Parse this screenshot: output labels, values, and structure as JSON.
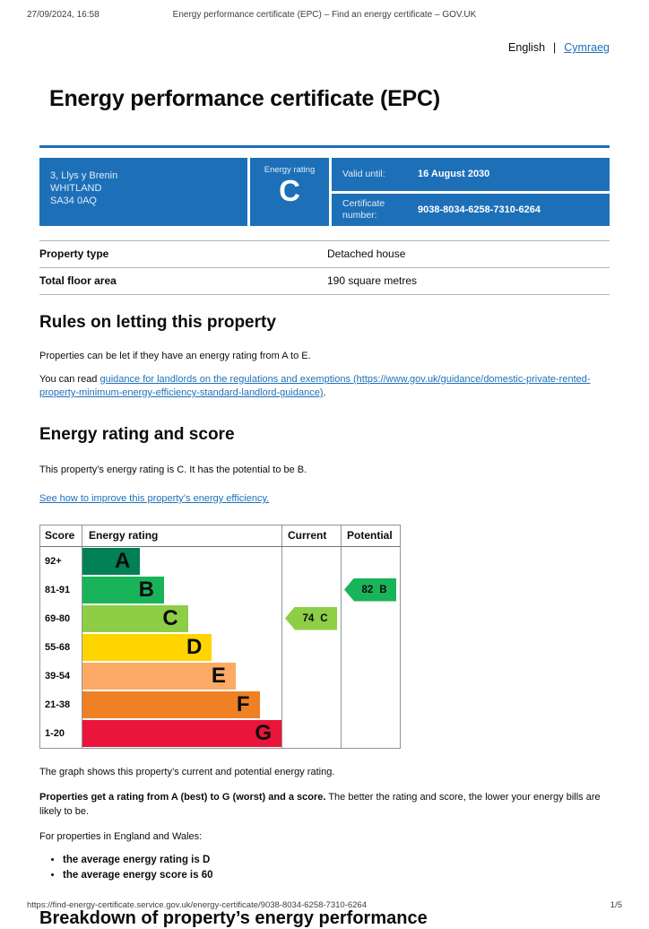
{
  "print_header": {
    "datetime": "27/09/2024, 16:58",
    "title": "Energy performance certificate (EPC) – Find an energy certificate – GOV.UK"
  },
  "language_switcher": {
    "current": "English",
    "divider": "|",
    "link": "Cymraeg"
  },
  "page": {
    "title": "Energy performance certificate (EPC)"
  },
  "summary_banner": {
    "address_lines": [
      "3, Llys y Brenin",
      "WHITLAND",
      "SA34 0AQ"
    ],
    "rating_label": "Energy rating",
    "rating_value": "C",
    "valid_until_label": "Valid until:",
    "valid_until_value": "16 August 2030",
    "certificate_number_label": "Certificate number:",
    "certificate_number_value": "9038-8034-6258-7310-6264"
  },
  "property_summary": {
    "rows": [
      {
        "label": "Property type",
        "value": "Detached house"
      },
      {
        "label": "Total floor area",
        "value": "190 square metres"
      }
    ]
  },
  "letting_rules": {
    "heading": "Rules on letting this property",
    "intro": "Properties can be let if they have an energy rating from A to E.",
    "guidance_prefix": "You can read ",
    "guidance_link": "guidance for landlords on the regulations and exemptions (https://www.gov.uk/guidance/domestic-private-rented-property-minimum-energy-efficiency-standard-landlord-guidance)",
    "guidance_suffix": "."
  },
  "rating_score": {
    "heading": "Energy rating and score",
    "summary": "This property’s energy rating is C. It has the potential to be B.",
    "improve_link": "See how to improve this property’s energy efficiency."
  },
  "chart_data": {
    "type": "epc-rating-bands",
    "headers": {
      "score": "Score",
      "rating": "Energy rating",
      "current": "Current",
      "potential": "Potential"
    },
    "bands": [
      {
        "score_range": "92+",
        "letter": "A",
        "color": "#008054",
        "width_pct": 29
      },
      {
        "score_range": "81-91",
        "letter": "B",
        "color": "#19b459",
        "width_pct": 41
      },
      {
        "score_range": "69-80",
        "letter": "C",
        "color": "#8dce46",
        "width_pct": 53
      },
      {
        "score_range": "55-68",
        "letter": "D",
        "color": "#ffd500",
        "width_pct": 65
      },
      {
        "score_range": "39-54",
        "letter": "E",
        "color": "#fcaa65",
        "width_pct": 77
      },
      {
        "score_range": "21-38",
        "letter": "F",
        "color": "#ef8023",
        "width_pct": 89
      },
      {
        "score_range": "1-20",
        "letter": "G",
        "color": "#e9153b",
        "width_pct": 100
      }
    ],
    "current": {
      "score": "74",
      "letter": "C",
      "band_index": 2,
      "color": "#8dce46"
    },
    "potential": {
      "score": "82",
      "letter": "B",
      "band_index": 1,
      "color": "#19b459"
    }
  },
  "chart_notes": {
    "graph_caption": "The graph shows this property’s current and potential energy rating.",
    "rating_bold": "Properties get a rating from A (best) to G (worst) and a score.",
    "rating_rest": " The better the rating and score, the lower your energy bills are likely to be.",
    "averages_intro": "For properties in England and Wales:",
    "averages": [
      "the average energy rating is D",
      "the average energy score is 60"
    ]
  },
  "breakdown": {
    "heading": "Breakdown of property’s energy performance"
  },
  "print_footer": {
    "url": "https://find-energy-certificate.service.gov.uk/energy-certificate/9038-8034-6258-7310-6264",
    "page": "1/5"
  },
  "colors": {
    "govuk_blue": "#1d70b8",
    "link_blue": "#1d70b8",
    "text": "#0b0c0c",
    "border_grey": "#b1b4b6"
  }
}
